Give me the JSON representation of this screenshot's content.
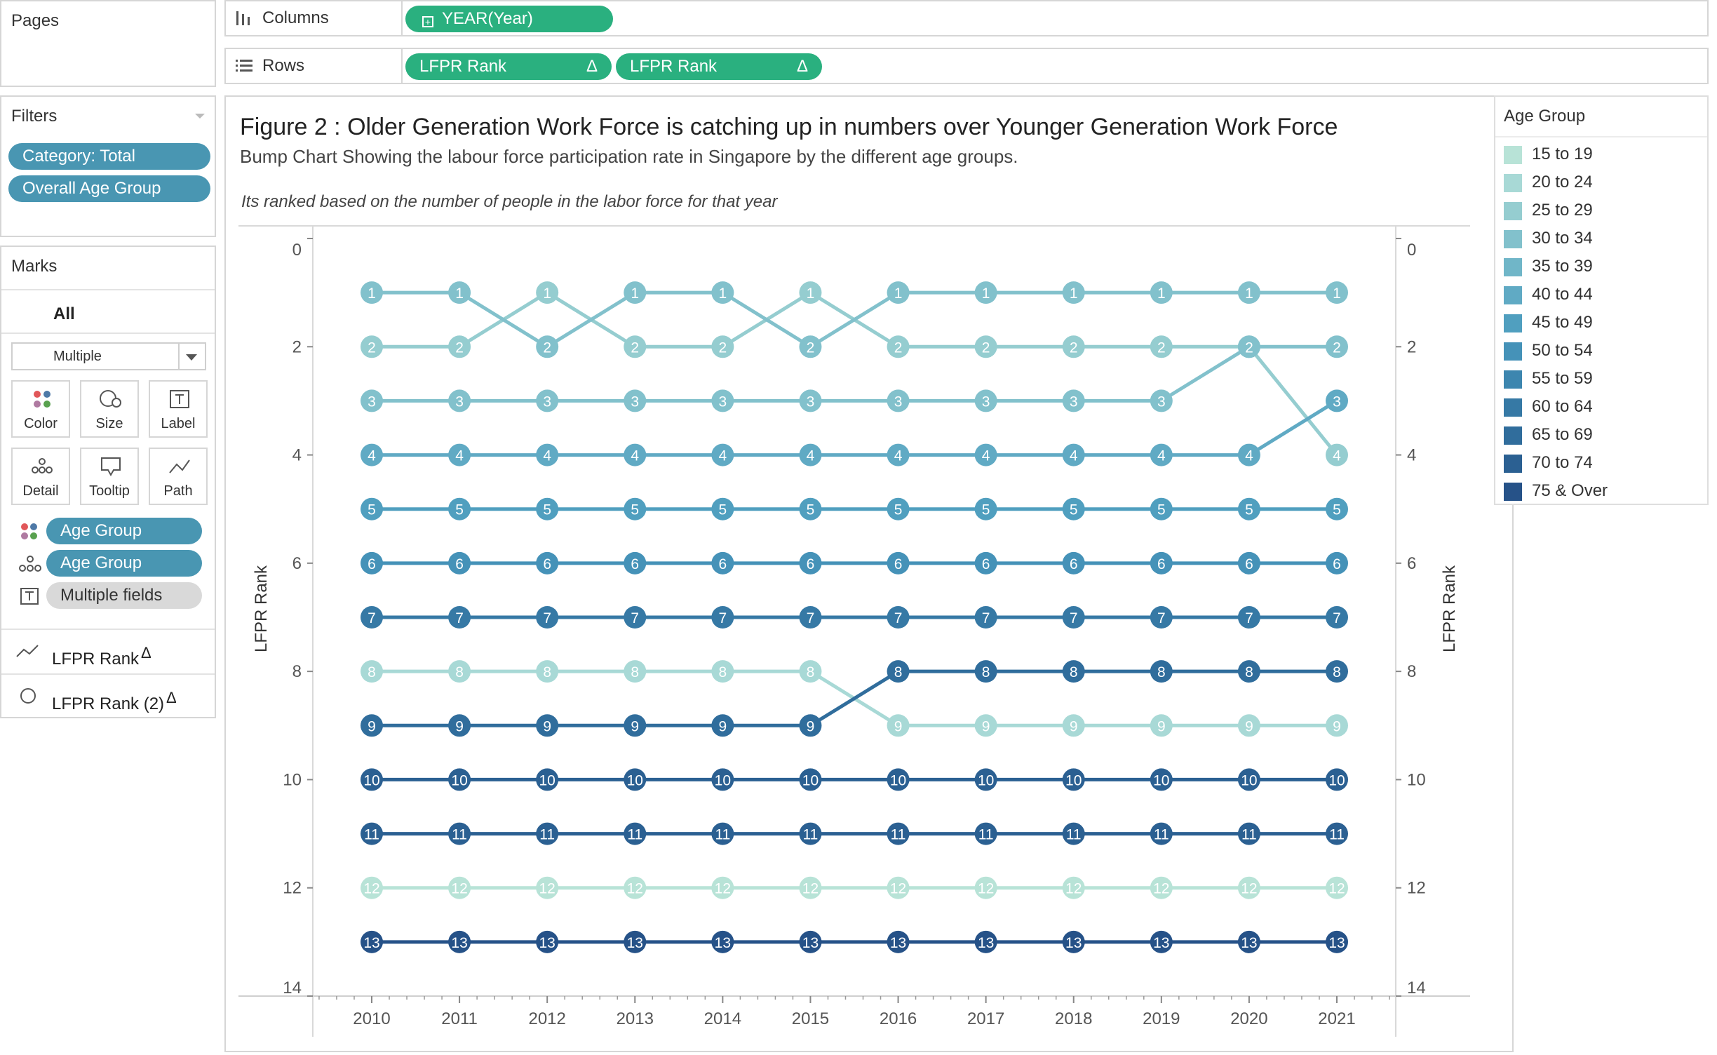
{
  "pages": {
    "title": "Pages"
  },
  "columns_shelf": {
    "label": "Columns",
    "pills": [
      "YEAR(Year)"
    ]
  },
  "rows_shelf": {
    "label": "Rows",
    "pills": [
      "LFPR Rank",
      "LFPR Rank"
    ]
  },
  "filters": {
    "title": "Filters",
    "items": [
      "Category: Total",
      "Overall Age Group"
    ]
  },
  "marks": {
    "title": "Marks",
    "tab": "All",
    "mark_type": "Multiple",
    "buttons": [
      "Color",
      "Size",
      "Label",
      "Detail",
      "Tooltip",
      "Path"
    ],
    "fields": [
      {
        "icon": "color-dots-icon",
        "label": "Age Group"
      },
      {
        "icon": "detail-dots-icon",
        "label": "Age Group"
      },
      {
        "icon": "label-icon",
        "label": "Multiple fields"
      }
    ],
    "measures": [
      {
        "icon": "line-icon",
        "label": "LFPR Rank",
        "delta": "Δ"
      },
      {
        "icon": "circle-icon",
        "label": "LFPR Rank (2)",
        "delta": "Δ"
      }
    ]
  },
  "view": {
    "title": "Figure 2 : Older Generation Work Force is catching up in numbers over  Younger Generation Work Force",
    "subtitle": "Bump Chart Showing the labour force participation rate in Singapore by the different age groups.",
    "note": "Its ranked based on the number of people in the labor force for that year"
  },
  "legend": {
    "title": "Age Group",
    "items": [
      {
        "label": "15 to 19",
        "color": "#b8e3d7"
      },
      {
        "label": "20 to 24",
        "color": "#a8d9d6"
      },
      {
        "label": "25 to 29",
        "color": "#95cdd0"
      },
      {
        "label": "30 to 34",
        "color": "#82c1cc"
      },
      {
        "label": "35 to 39",
        "color": "#70b6c8"
      },
      {
        "label": "40 to 44",
        "color": "#60aac4"
      },
      {
        "label": "45 to 49",
        "color": "#509fbf"
      },
      {
        "label": "50 to 54",
        "color": "#4592b8"
      },
      {
        "label": "55 to 59",
        "color": "#3d86af"
      },
      {
        "label": "60 to 64",
        "color": "#3679a5"
      },
      {
        "label": "65 to 69",
        "color": "#306d9c"
      },
      {
        "label": "70 to 74",
        "color": "#2b6092"
      },
      {
        "label": "75 & Over",
        "color": "#265288"
      }
    ]
  },
  "chart_data": {
    "type": "line",
    "title": "Figure 2 : Older Generation Work Force is catching up in numbers over  Younger Generation Work Force",
    "xlabel": "",
    "ylabel": "LFPR Rank",
    "ylabel_right": "LFPR Rank",
    "x": [
      2010,
      2011,
      2012,
      2013,
      2014,
      2015,
      2016,
      2017,
      2018,
      2019,
      2020,
      2021
    ],
    "ylim": [
      0,
      14
    ],
    "y_reversed": true,
    "y_ticks": [
      0,
      2,
      4,
      6,
      8,
      10,
      12,
      14
    ],
    "grid": false,
    "series": [
      {
        "color": "#b8e3d7",
        "values": [
          12,
          12,
          12,
          12,
          12,
          12,
          12,
          12,
          12,
          12,
          12,
          12
        ]
      },
      {
        "color": "#a8d9d6",
        "values": [
          8,
          8,
          8,
          8,
          8,
          8,
          9,
          9,
          9,
          9,
          9,
          9
        ]
      },
      {
        "color": "#95cdd0",
        "values": [
          2,
          2,
          1,
          2,
          2,
          1,
          2,
          2,
          2,
          2,
          2,
          4
        ]
      },
      {
        "color": "#82c1cc",
        "values": [
          1,
          1,
          2,
          1,
          1,
          2,
          1,
          1,
          1,
          1,
          1,
          1
        ]
      },
      {
        "color": "#82c1cc",
        "values": [
          3,
          3,
          3,
          3,
          3,
          3,
          3,
          3,
          3,
          3,
          2,
          2
        ]
      },
      {
        "color": "#60aac4",
        "values": [
          4,
          4,
          4,
          4,
          4,
          4,
          4,
          4,
          4,
          4,
          4,
          3
        ]
      },
      {
        "color": "#509fbf",
        "values": [
          5,
          5,
          5,
          5,
          5,
          5,
          5,
          5,
          5,
          5,
          5,
          5
        ]
      },
      {
        "color": "#4592b8",
        "values": [
          6,
          6,
          6,
          6,
          6,
          6,
          6,
          6,
          6,
          6,
          6,
          6
        ]
      },
      {
        "color": "#3679a5",
        "values": [
          7,
          7,
          7,
          7,
          7,
          7,
          7,
          7,
          7,
          7,
          7,
          7
        ]
      },
      {
        "color": "#306d9c",
        "values": [
          9,
          9,
          9,
          9,
          9,
          9,
          8,
          8,
          8,
          8,
          8,
          8
        ]
      },
      {
        "color": "#2b6092",
        "values": [
          10,
          10,
          10,
          10,
          10,
          10,
          10,
          10,
          10,
          10,
          10,
          10
        ]
      },
      {
        "color": "#2b6092",
        "values": [
          11,
          11,
          11,
          11,
          11,
          11,
          11,
          11,
          11,
          11,
          11,
          11
        ]
      },
      {
        "color": "#265288",
        "values": [
          13,
          13,
          13,
          13,
          13,
          13,
          13,
          13,
          13,
          13,
          13,
          13
        ]
      }
    ]
  }
}
